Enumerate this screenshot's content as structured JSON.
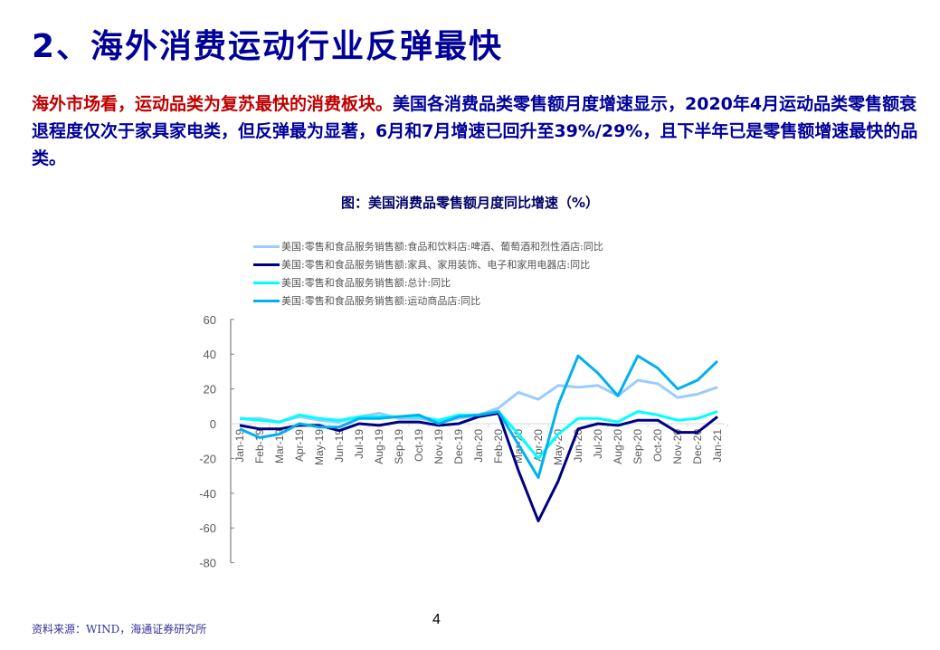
{
  "page": {
    "title": "2、海外消费运动行业反弹最快",
    "paragraph": {
      "highlight": "海外市场看，运动品类为复苏最快的消费板块。",
      "body": "美国各消费品类零售额月度增速显示，2020年4月运动品类零售额衰退程度仅次于家具家电类，但反弹最为显著，6月和7月增速已回升至39%/29%，且下半年已是零售额增速最快的品类。"
    },
    "source": "资料来源：WIND，海通证券研究所",
    "page_number": "4"
  },
  "chart_data": {
    "type": "line",
    "title": "图：美国消费品零售额月度同比增速（%）",
    "xlabel": "",
    "ylabel": "",
    "ylim": [
      -80,
      60
    ],
    "yticks": [
      60,
      40,
      20,
      0,
      -20,
      -40,
      -60,
      -80
    ],
    "grid": false,
    "legend_position": "top-left",
    "categories": [
      "Jan-19",
      "Feb-19",
      "Mar-19",
      "Apr-19",
      "May-19",
      "Jun-19",
      "Jul-19",
      "Aug-19",
      "Sep-19",
      "Oct-19",
      "Nov-19",
      "Dec-19",
      "Jan-20",
      "Feb-20",
      "Mar-20",
      "Apr-20",
      "May-20",
      "Jun-20",
      "Jul-20",
      "Aug-20",
      "Sep-20",
      "Oct-20",
      "Nov-20",
      "Dec-20",
      "Jan-21"
    ],
    "series": [
      {
        "name": "美国:零售和食品服务销售额:食品和饮料店:啤酒、葡萄酒和烈性酒店:同比",
        "color": "#99CCFF",
        "values": [
          3,
          3,
          1,
          4,
          2,
          1,
          4,
          6,
          3,
          3,
          1,
          3,
          5,
          9,
          18,
          14,
          22,
          21,
          22,
          16,
          25,
          23,
          15,
          17,
          21
        ]
      },
      {
        "name": "美国:零售和食品服务销售额:家具、家用装饰、电子和家用电器店:同比",
        "color": "#000080",
        "values": [
          -1,
          -3,
          -3,
          -1,
          -1,
          -4,
          0,
          -1,
          1,
          1,
          -1,
          0,
          4,
          6,
          -27,
          -56,
          -33,
          -3,
          0,
          -1,
          2,
          2,
          -5,
          -5,
          4
        ]
      },
      {
        "name": "美国:零售和食品服务销售额:总计:同比",
        "color": "#00FFFF",
        "values": [
          3,
          2,
          1,
          5,
          3,
          2,
          4,
          4,
          4,
          4,
          2,
          5,
          5,
          7,
          -6,
          -20,
          -6,
          3,
          3,
          1,
          7,
          5,
          2,
          3,
          7
        ]
      },
      {
        "name": "美国:零售和食品服务销售额:运动商品店:同比",
        "color": "#00B0F0",
        "values": [
          -3,
          -8,
          -6,
          0,
          -2,
          -2,
          3,
          3,
          4,
          5,
          0,
          4,
          5,
          7,
          -12,
          -31,
          11,
          39,
          29,
          16,
          39,
          32,
          20,
          25,
          36
        ]
      }
    ]
  }
}
